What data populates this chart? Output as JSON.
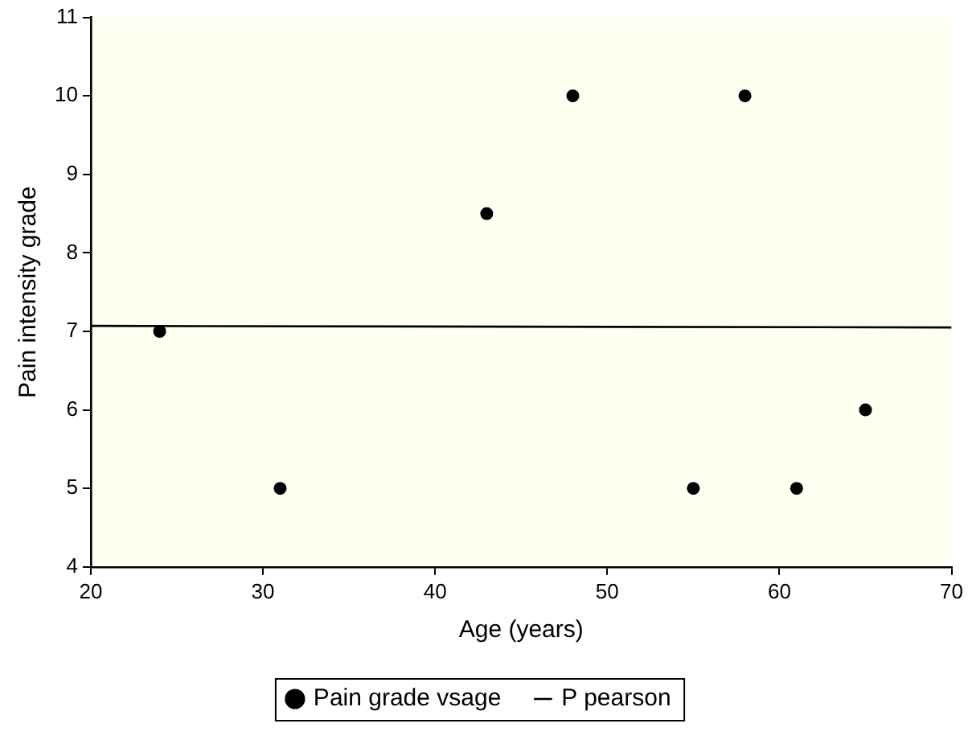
{
  "chart_data": {
    "type": "scatter",
    "xlabel": "Age (years)",
    "ylabel": "Pain intensity grade",
    "xlim": [
      20,
      70
    ],
    "xticks": [
      20,
      30,
      40,
      50,
      60,
      70
    ],
    "ylim": [
      4,
      11
    ],
    "yticks": [
      4,
      5,
      6,
      7,
      8,
      9,
      10,
      11
    ],
    "grid": false,
    "legend": "bottom",
    "series": [
      {
        "name": "Pain grade vsage",
        "color": "#000000",
        "marker": "circle",
        "x": [
          24,
          31,
          43,
          48,
          55,
          58,
          61,
          65
        ],
        "values": [
          7,
          5,
          8.5,
          10,
          5,
          10,
          5,
          6
        ]
      },
      {
        "name": "P pearson",
        "type": "line",
        "color": "#000000",
        "marker": "none",
        "line_style": "solid",
        "x": [
          20,
          70
        ],
        "values": [
          7.07,
          7.05
        ]
      }
    ]
  }
}
